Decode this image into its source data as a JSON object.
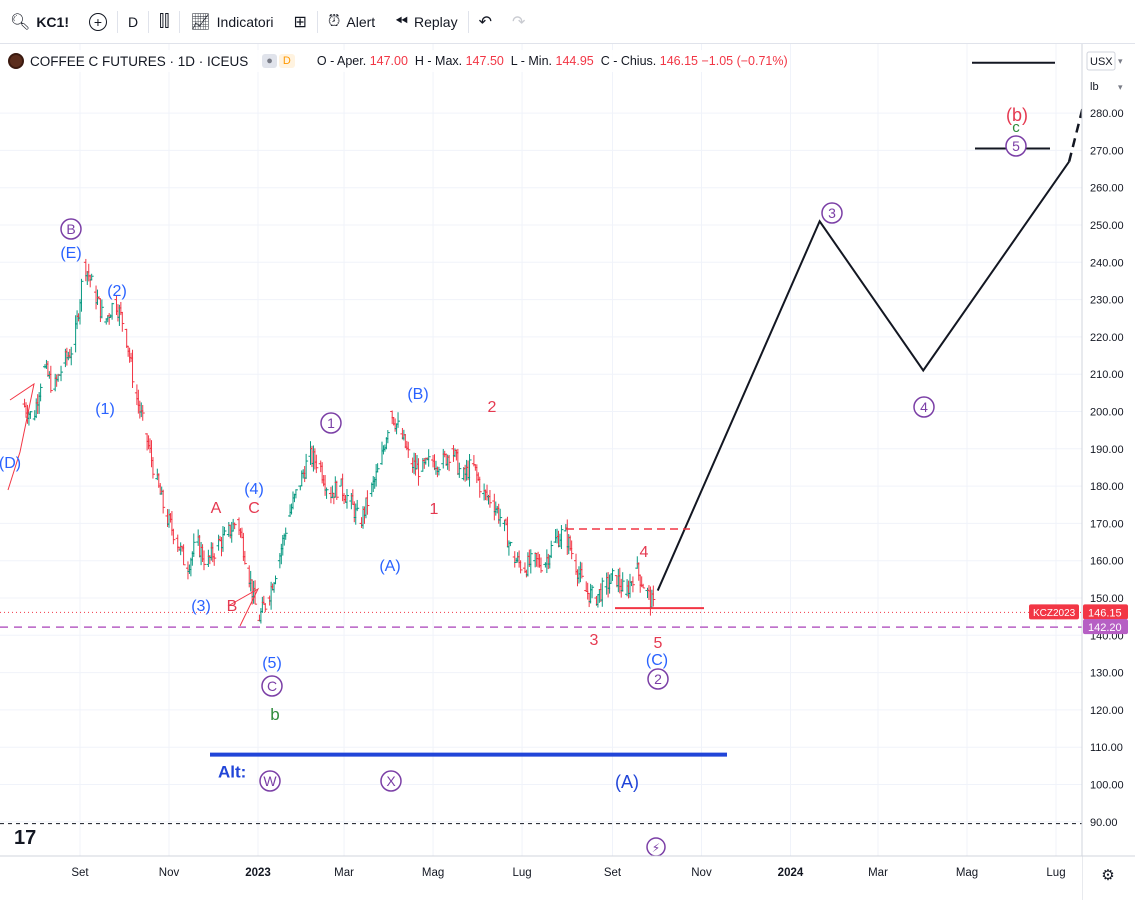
{
  "toolbar": {
    "symbol": "KC1!",
    "interval": "D",
    "indicators_label": "Indicatori",
    "alert_label": "Alert",
    "replay_label": "Replay"
  },
  "legend": {
    "title": "COFFEE C FUTURES · 1D · ICEUS",
    "badge_d": "D",
    "o_label": "O - Aper.",
    "o_value": "147.00",
    "h_label": "H - Max.",
    "h_value": "147.50",
    "l_label": "L - Min.",
    "l_value": "144.95",
    "c_label": "C - Chius.",
    "c_value": "146.15",
    "change": "−1.05 (−0.71%)"
  },
  "price_scale": {
    "currency": "USX",
    "unit": "lb",
    "last_label": "KCZ2023",
    "last_price": "146.15",
    "level_price": "142.20"
  },
  "colors": {
    "up": "#089981",
    "down": "#f23645",
    "wave_blue": "#2962ff",
    "wave_purple": "#7b3fa6",
    "wave_red": "#e53950",
    "wave_green": "#2e8b3a",
    "level_magenta": "#b65fc4",
    "alt_line": "#2145d8"
  },
  "chart_data": {
    "type": "line",
    "title": "COFFEE C FUTURES · 1D · ICEUS",
    "ylim": [
      85,
      305
    ],
    "y_ticks": [
      90,
      100,
      110,
      120,
      130,
      140,
      150,
      160,
      170,
      180,
      190,
      200,
      210,
      220,
      230,
      240,
      250,
      260,
      270,
      280
    ],
    "x_ticks": [
      "Set",
      "Nov",
      "2023",
      "Mar",
      "Mag",
      "Lug",
      "Set",
      "Nov",
      "2024",
      "Mar",
      "Mag",
      "Lug"
    ],
    "x_tick_dates": [
      "2022-09-01",
      "2022-11-01",
      "2023-01-01",
      "2023-03-01",
      "2023-05-01",
      "2023-07-01",
      "2023-09-01",
      "2023-11-01",
      "2024-01-01",
      "2024-03-01",
      "2024-05-01",
      "2024-07-01"
    ],
    "series": [
      {
        "style": "price",
        "x": [
          "2022-07-25",
          "2022-08-01",
          "2022-08-08",
          "2022-08-15",
          "2022-08-22",
          "2022-08-29",
          "2022-09-05",
          "2022-09-12",
          "2022-09-19",
          "2022-09-26",
          "2022-10-03",
          "2022-10-10",
          "2022-10-17",
          "2022-10-24",
          "2022-10-31",
          "2022-11-07",
          "2022-11-14",
          "2022-11-21",
          "2022-11-28",
          "2022-12-05",
          "2022-12-12",
          "2022-12-19",
          "2022-12-26",
          "2023-01-02",
          "2023-01-09",
          "2023-01-16",
          "2023-01-23",
          "2023-01-30",
          "2023-02-06",
          "2023-02-13",
          "2023-02-20",
          "2023-02-27",
          "2023-03-06",
          "2023-03-13",
          "2023-03-20",
          "2023-03-27",
          "2023-04-03",
          "2023-04-10",
          "2023-04-17",
          "2023-04-24",
          "2023-05-01",
          "2023-05-08",
          "2023-05-15",
          "2023-05-22",
          "2023-05-29",
          "2023-06-05",
          "2023-06-12",
          "2023-06-19",
          "2023-06-26",
          "2023-07-03",
          "2023-07-10",
          "2023-07-17",
          "2023-07-24",
          "2023-07-31",
          "2023-08-07",
          "2023-08-14",
          "2023-08-21",
          "2023-08-28",
          "2023-09-04",
          "2023-09-11",
          "2023-09-18",
          "2023-09-25",
          "2023-10-02"
        ],
        "values": [
          202,
          198,
          212,
          206,
          213,
          218,
          240,
          232,
          224,
          230,
          222,
          205,
          194,
          182,
          172,
          166,
          158,
          165,
          159,
          164,
          167,
          171,
          158,
          144,
          150,
          160,
          172,
          180,
          188,
          186,
          178,
          180,
          176,
          170,
          178,
          186,
          200,
          194,
          186,
          184,
          187,
          186,
          190,
          182,
          186,
          178,
          176,
          170,
          161,
          158,
          160,
          159,
          165,
          168,
          160,
          152,
          150,
          153,
          156,
          151,
          158,
          152,
          146.15
        ]
      },
      {
        "style": "projection",
        "x": [
          "2023-10-02",
          "2024-01-21",
          "2024-04-01",
          "2024-07-10"
        ],
        "values": [
          152,
          251,
          211,
          267
        ]
      }
    ],
    "levels": [
      {
        "value": 142.2,
        "style": "dashed"
      },
      {
        "value": 108,
        "label": "Alt:"
      },
      {
        "value": 89.5,
        "style": "dashed"
      }
    ],
    "wave_labels_blue": [
      "(E)",
      "(2)",
      "(1)",
      "(D)",
      "(4)",
      "(3)",
      "(5)",
      "(B)",
      "(A)",
      "(C)",
      "(A)"
    ],
    "wave_labels_purple": [
      "B",
      "C",
      "1",
      "2",
      "3",
      "4",
      "5",
      "W",
      "X"
    ],
    "wave_labels_red": [
      "A",
      "C",
      "B",
      "1",
      "2",
      "3",
      "4",
      "5",
      "(b)"
    ],
    "wave_labels_green": [
      "b",
      "c"
    ]
  }
}
